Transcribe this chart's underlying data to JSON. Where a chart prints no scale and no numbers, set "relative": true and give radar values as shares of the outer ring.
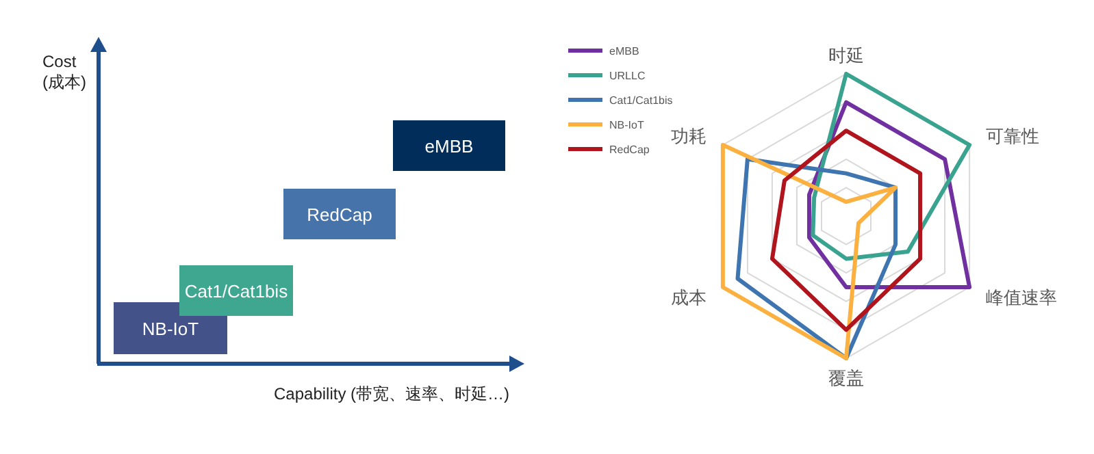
{
  "chart_data": [
    {
      "type": "other",
      "xlabel": "Capability (带宽、速率、时延…)",
      "ylabel": "Cost (成本)",
      "annotations": [
        "NB-IoT",
        "Cat1/Cat1bis",
        "RedCap",
        "eMBB"
      ]
    },
    {
      "type": "radar",
      "relative": true,
      "legend": "top left",
      "categories": [
        "时延",
        "可靠性",
        "峰值速率",
        "覆盖",
        "成本",
        "功耗"
      ],
      "series": [
        {
          "name": "eMBB",
          "color": "#7030a0",
          "values": [
            0.8,
            0.8,
            1.0,
            0.5,
            0.3,
            0.3
          ]
        },
        {
          "name": "URLLC",
          "color": "#3aa38f",
          "values": [
            1.0,
            1.0,
            0.5,
            0.3,
            0.27,
            0.26
          ]
        },
        {
          "name": "Cat1/Cat1bis",
          "color": "#3e75b0",
          "values": [
            0.3,
            0.4,
            0.4,
            1.0,
            0.88,
            0.8
          ]
        },
        {
          "name": "NB-IoT",
          "color": "#fbb040",
          "values": [
            0.1,
            0.4,
            0.1,
            1.0,
            1.0,
            1.0
          ]
        },
        {
          "name": "RedCap",
          "color": "#b0141c",
          "values": [
            0.6,
            0.6,
            0.6,
            0.8,
            0.6,
            0.5
          ]
        }
      ]
    }
  ]
}
